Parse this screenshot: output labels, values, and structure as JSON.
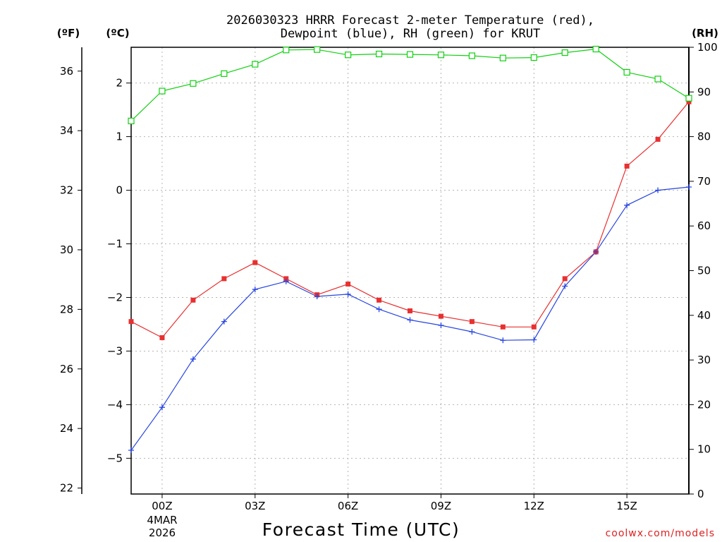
{
  "chart_data": {
    "type": "line",
    "title_line1": "2026030323 HRRR Forecast 2-meter Temperature (red),",
    "title_line2": "Dewpoint (blue), RH (green) for KRUT",
    "xlabel": "Forecast Time (UTC)",
    "credit": "coolwx.com/models",
    "left_outer_unit": "(ºF)",
    "left_inner_unit": "(ºC)",
    "right_unit": "(RH)",
    "x_hours": [
      -1,
      0,
      1,
      2,
      3,
      4,
      5,
      6,
      7,
      8,
      9,
      10,
      11,
      12,
      13,
      14,
      15,
      16,
      17
    ],
    "x_ticks": [
      {
        "hour": 0,
        "label": "00Z"
      },
      {
        "hour": 3,
        "label": "03Z"
      },
      {
        "hour": 6,
        "label": "06Z"
      },
      {
        "hour": 9,
        "label": "09Z"
      },
      {
        "hour": 12,
        "label": "12Z"
      },
      {
        "hour": 15,
        "label": "15Z"
      }
    ],
    "date_label_1": "4MAR",
    "date_label_2": "2026",
    "xlim": [
      -1,
      17
    ],
    "ylim_c": [
      -5.6667,
      2.6667
    ],
    "ylim_f": [
      21.8,
      36.8
    ],
    "ylim_rh": [
      0,
      100
    ],
    "celsius_ticks": [
      2,
      1,
      0,
      -1,
      -2,
      -3,
      -4,
      -5
    ],
    "fahrenheit_ticks": [
      36,
      34,
      32,
      30,
      28,
      26,
      24,
      22
    ],
    "rh_ticks": [
      100,
      90,
      80,
      70,
      60,
      50,
      40,
      30,
      20,
      10,
      0
    ],
    "series": [
      {
        "name": "Temperature",
        "unit": "C",
        "color": "#e83030",
        "marker": "filled-square",
        "values": [
          -2.45,
          -2.75,
          -2.05,
          -1.65,
          -1.35,
          -1.65,
          -1.95,
          -1.75,
          -2.05,
          -2.25,
          -2.35,
          -2.45,
          -2.55,
          -2.55,
          -1.65,
          -1.15,
          0.45,
          0.95,
          1.65
        ]
      },
      {
        "name": "Dewpoint",
        "unit": "C",
        "color": "#2846e0",
        "marker": "plus",
        "values": [
          -4.85,
          -4.05,
          -3.15,
          -2.45,
          -1.85,
          -1.7,
          -1.98,
          -1.94,
          -2.22,
          -2.42,
          -2.52,
          -2.64,
          -2.8,
          -2.79,
          -1.79,
          -1.15,
          -0.28,
          0.0,
          0.06
        ]
      },
      {
        "name": "RH",
        "unit": "%",
        "color": "#10d010",
        "marker": "open-square",
        "values": [
          83.5,
          90.2,
          91.9,
          94.1,
          96.2,
          99.4,
          99.5,
          98.3,
          98.5,
          98.4,
          98.3,
          98.1,
          97.6,
          97.7,
          98.8,
          99.6,
          94.4,
          92.9,
          88.6
        ]
      }
    ]
  }
}
